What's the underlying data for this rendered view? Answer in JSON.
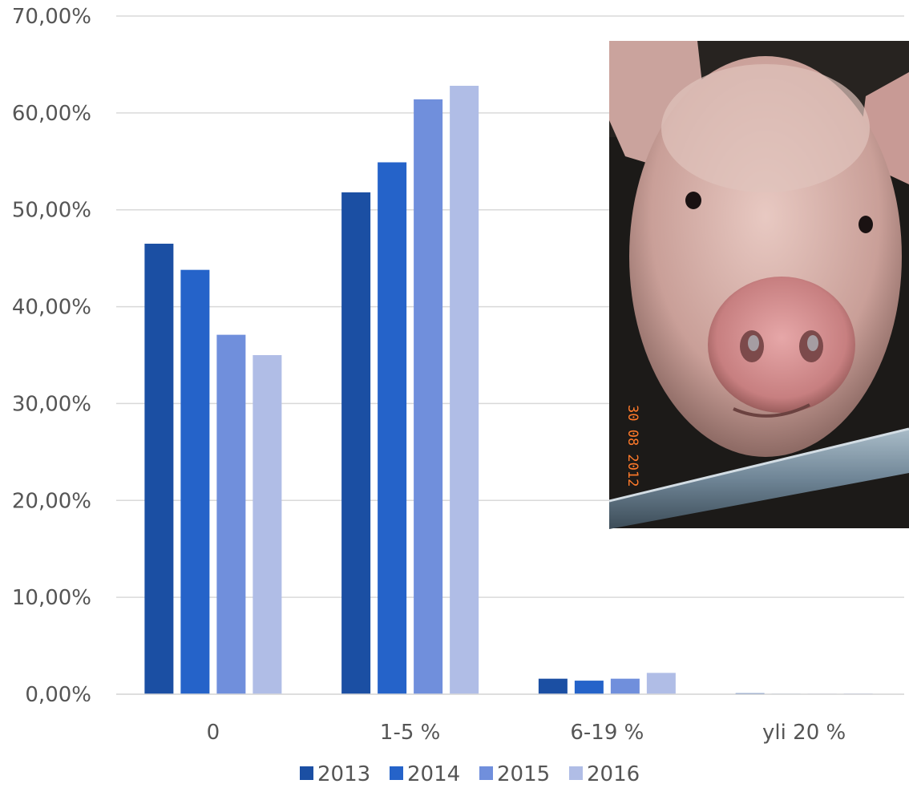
{
  "chart_data": {
    "type": "bar",
    "categories": [
      "0",
      "1-5 %",
      "6-19 %",
      "yli 20 %"
    ],
    "series": [
      {
        "name": "2013",
        "color": "#1b4fa3",
        "values": [
          46.5,
          51.8,
          1.6,
          0.1
        ]
      },
      {
        "name": "2014",
        "color": "#2563c9",
        "values": [
          43.8,
          54.9,
          1.4,
          0.0
        ]
      },
      {
        "name": "2015",
        "color": "#708fdc",
        "values": [
          37.1,
          61.4,
          1.6,
          0.0
        ]
      },
      {
        "name": "2016",
        "color": "#b0bde6",
        "values": [
          35.0,
          62.8,
          2.2,
          0.05
        ]
      }
    ],
    "ylim": [
      0,
      70
    ],
    "yticks": [
      0,
      10,
      20,
      30,
      40,
      50,
      60,
      70
    ],
    "ytick_labels": [
      "0,00%",
      "10,00%",
      "20,00%",
      "30,00%",
      "40,00%",
      "50,00%",
      "60,00%",
      "70,00%"
    ],
    "grid": true,
    "legend_position": "bottom"
  },
  "photo": {
    "subject": "pig",
    "date_stamp": "30 08 2012"
  }
}
